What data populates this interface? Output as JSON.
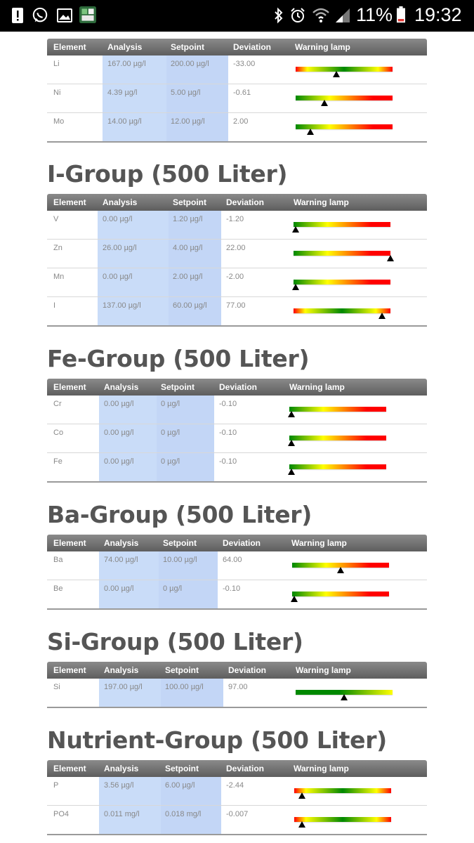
{
  "status_bar": {
    "battery_percent": "11%",
    "time": "19:32",
    "left_icons": [
      "alert-icon",
      "whatsapp-icon",
      "gallery-icon",
      "nikon-app-icon"
    ],
    "right_icons": [
      "bluetooth-icon",
      "alarm-icon",
      "wifi-icon",
      "signal-icon",
      "battery-icon"
    ]
  },
  "headers": {
    "element": "Element",
    "analysis": "Analysis",
    "setpoint": "Setpoint",
    "deviation": "Deviation",
    "warning_lamp": "Warning lamp"
  },
  "lamp_colors": {
    "green": "#008800",
    "yellow": "#ffff00",
    "red": "#ff0000"
  },
  "groups": [
    {
      "title": "",
      "rows": [
        {
          "element": "Li",
          "analysis": "167.00 µg/l",
          "setpoint": "200.00 µg/l",
          "deviation": "-33.00",
          "lamp_type": "ygr",
          "marker": 0.42
        },
        {
          "element": "Ni",
          "analysis": "4.39 µg/l",
          "setpoint": "5.00 µg/l",
          "deviation": "-0.61",
          "lamp_type": "gyr",
          "marker": 0.3
        },
        {
          "element": "Mo",
          "analysis": "14.00 µg/l",
          "setpoint": "12.00 µg/l",
          "deviation": "2.00",
          "lamp_type": "gyr",
          "marker": 0.15
        }
      ]
    },
    {
      "title": "I-Group (500 Liter)",
      "rows": [
        {
          "element": "V",
          "analysis": "0.00 µg/l",
          "setpoint": "1.20 µg/l",
          "deviation": "-1.20",
          "lamp_type": "gyr",
          "marker": 0.02
        },
        {
          "element": "Zn",
          "analysis": "26.00 µg/l",
          "setpoint": "4.00 µg/l",
          "deviation": "22.00",
          "lamp_type": "gyr",
          "marker": 1.0
        },
        {
          "element": "Mn",
          "analysis": "0.00 µg/l",
          "setpoint": "2.00 µg/l",
          "deviation": "-2.00",
          "lamp_type": "gyr",
          "marker": 0.02
        },
        {
          "element": "I",
          "analysis": "137.00 µg/l",
          "setpoint": "60.00 µg/l",
          "deviation": "77.00",
          "lamp_type": "ygr",
          "marker": 0.91
        }
      ]
    },
    {
      "title": "Fe-Group (500 Liter)",
      "rows": [
        {
          "element": "Cr",
          "analysis": "0.00 µg/l",
          "setpoint": "0 µg/l",
          "deviation": "-0.10",
          "lamp_type": "gyr",
          "marker": 0.02
        },
        {
          "element": "Co",
          "analysis": "0.00 µg/l",
          "setpoint": "0 µg/l",
          "deviation": "-0.10",
          "lamp_type": "gyr",
          "marker": 0.02
        },
        {
          "element": "Fe",
          "analysis": "0.00 µg/l",
          "setpoint": "0 µg/l",
          "deviation": "-0.10",
          "lamp_type": "gyr",
          "marker": 0.02
        }
      ]
    },
    {
      "title": "Ba-Group (500 Liter)",
      "rows": [
        {
          "element": "Ba",
          "analysis": "74.00 µg/l",
          "setpoint": "10.00 µg/l",
          "deviation": "64.00",
          "lamp_type": "gyr",
          "marker": 0.5
        },
        {
          "element": "Be",
          "analysis": "0.00 µg/l",
          "setpoint": "0 µg/l",
          "deviation": "-0.10",
          "lamp_type": "gyr",
          "marker": 0.02
        }
      ]
    },
    {
      "title": "Si-Group (500 Liter)",
      "rows": [
        {
          "element": "Si",
          "analysis": "197.00 µg/l",
          "setpoint": "100.00 µg/l",
          "deviation": "97.00",
          "lamp_type": "gy",
          "marker": 0.5
        }
      ]
    },
    {
      "title": "Nutrient-Group (500 Liter)",
      "rows": [
        {
          "element": "P",
          "analysis": "3.56 µg/l",
          "setpoint": "6.00 µg/l",
          "deviation": "-2.44",
          "lamp_type": "ygr",
          "marker": 0.08
        },
        {
          "element": "PO4",
          "analysis": "0.011 mg/l",
          "setpoint": "0.018 mg/l",
          "deviation": "-0.007",
          "lamp_type": "ygr",
          "marker": 0.08
        }
      ]
    }
  ]
}
